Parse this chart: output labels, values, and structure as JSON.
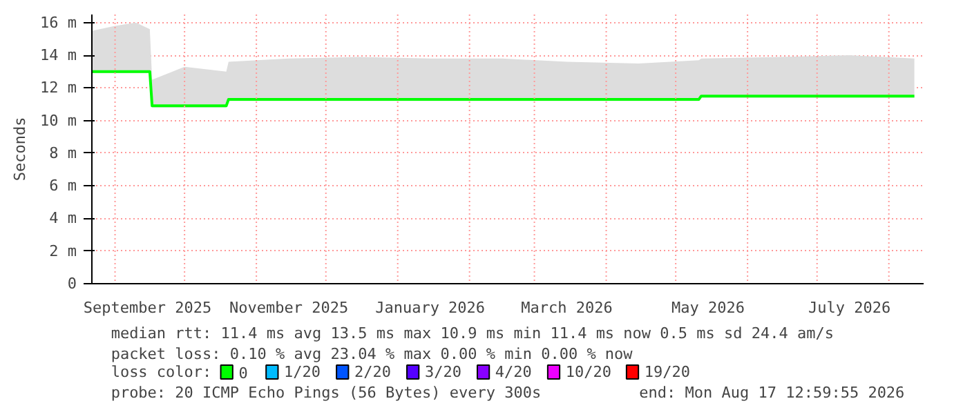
{
  "chart_data": {
    "type": "line",
    "ylabel": "Seconds",
    "x": [
      "2025-08-22",
      "2025-09-01",
      "2025-09-10",
      "2025-09-16",
      "2025-09-17",
      "2025-10-01",
      "2025-10-19",
      "2025-10-20",
      "2025-11-15",
      "2025-12-15",
      "2026-01-15",
      "2026-02-15",
      "2026-03-15",
      "2026-04-15",
      "2026-05-11",
      "2026-05-12",
      "2026-06-15",
      "2026-07-15",
      "2026-08-12"
    ],
    "series": [
      {
        "name": "0",
        "color": "#00ff00",
        "values": [
          13.0,
          13.0,
          13.0,
          13.0,
          10.9,
          10.9,
          10.9,
          11.3,
          11.3,
          11.3,
          11.3,
          11.3,
          11.3,
          11.3,
          11.3,
          11.5,
          11.5,
          11.5,
          11.5
        ],
        "lower": [
          12.9,
          12.9,
          12.9,
          12.9,
          10.8,
          10.8,
          10.8,
          11.2,
          11.2,
          11.2,
          11.2,
          11.2,
          11.2,
          11.2,
          11.2,
          11.4,
          11.4,
          11.4,
          11.4
        ],
        "upper": [
          15.5,
          15.8,
          16.0,
          15.6,
          12.5,
          13.3,
          13.0,
          13.6,
          13.8,
          13.9,
          13.8,
          13.8,
          13.6,
          13.5,
          13.7,
          13.8,
          13.9,
          14.0,
          13.8
        ]
      },
      {
        "name": "1/20",
        "color": "#00bbff",
        "values": [
          null,
          null,
          null,
          null,
          null,
          null,
          null,
          null,
          null,
          null,
          null,
          null,
          null,
          null,
          null,
          null,
          null,
          null,
          null
        ]
      },
      {
        "name": "2/20",
        "color": "#0055ff",
        "values": [
          null,
          null,
          null,
          null,
          null,
          null,
          null,
          null,
          null,
          null,
          null,
          null,
          null,
          null,
          null,
          null,
          null,
          null,
          null
        ]
      },
      {
        "name": "3/20",
        "color": "#5500ff",
        "values": [
          null,
          null,
          null,
          null,
          null,
          null,
          null,
          null,
          null,
          null,
          null,
          null,
          null,
          null,
          null,
          null,
          null,
          null,
          null
        ]
      },
      {
        "name": "4/20",
        "color": "#8800ff",
        "values": [
          null,
          null,
          null,
          null,
          null,
          null,
          null,
          null,
          null,
          null,
          null,
          null,
          null,
          null,
          null,
          null,
          null,
          null,
          null
        ]
      },
      {
        "name": "10/20",
        "color": "#ee00ff",
        "values": [
          null,
          null,
          null,
          null,
          null,
          null,
          null,
          null,
          null,
          null,
          null,
          null,
          null,
          null,
          null,
          null,
          null,
          null,
          null
        ]
      },
      {
        "name": "19/20",
        "color": "#ff0000",
        "values": [
          null,
          null,
          null,
          null,
          null,
          null,
          null,
          null,
          null,
          null,
          null,
          null,
          null,
          null,
          null,
          null,
          null,
          null,
          null
        ]
      }
    ],
    "xlim": [
      "2025-08-22",
      "2026-08-16"
    ],
    "xticks": [
      {
        "value": "2025-09-01",
        "label": null
      },
      {
        "value": "2025-09-15",
        "label": "September 2025"
      },
      {
        "value": "2025-10-01",
        "label": null
      },
      {
        "value": "2025-11-01",
        "label": null
      },
      {
        "value": "2025-11-15",
        "label": "November 2025"
      },
      {
        "value": "2025-12-01",
        "label": null
      },
      {
        "value": "2026-01-01",
        "label": null
      },
      {
        "value": "2026-01-15",
        "label": "January 2026"
      },
      {
        "value": "2026-02-01",
        "label": null
      },
      {
        "value": "2026-03-01",
        "label": null
      },
      {
        "value": "2026-03-15",
        "label": "March 2026"
      },
      {
        "value": "2026-04-01",
        "label": null
      },
      {
        "value": "2026-05-01",
        "label": null
      },
      {
        "value": "2026-05-15",
        "label": "May 2026"
      },
      {
        "value": "2026-06-01",
        "label": null
      },
      {
        "value": "2026-07-01",
        "label": null
      },
      {
        "value": "2026-07-15",
        "label": "July 2026"
      },
      {
        "value": "2026-08-01",
        "label": null
      }
    ],
    "ylim": [
      0,
      16.5
    ],
    "yticks": [
      0,
      {
        "value": 2,
        "label": "2 m"
      },
      {
        "value": 4,
        "label": "4 m"
      },
      {
        "value": 6,
        "label": "6 m"
      },
      {
        "value": 8,
        "label": "8 m"
      },
      {
        "value": 10,
        "label": "10 m"
      },
      {
        "value": 12,
        "label": "12 m"
      },
      {
        "value": 14,
        "label": "14 m"
      },
      {
        "value": 16,
        "label": "16 m"
      }
    ],
    "grid": true,
    "legend": "bottom",
    "legend_title": "loss color:",
    "annotations": [
      "median rtt:  11.4 ms avg  13.5 ms max  10.9 ms min  11.4 ms now  0.5 ms sd  24.4   am/s",
      "packet loss: 0.10 % avg  23.04 % max  0.00 % min  0.00 % now",
      "probe:       20 ICMP Echo Pings (56 Bytes) every 300s",
      "end: Mon Aug 17 12:59:55 2026"
    ]
  }
}
